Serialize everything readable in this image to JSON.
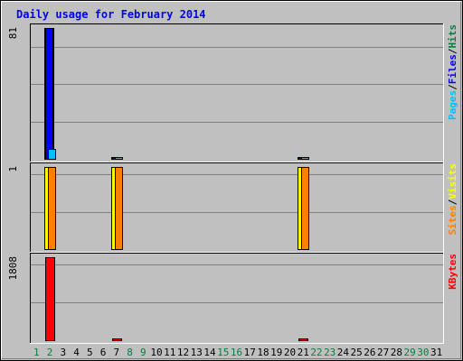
{
  "chart_data": {
    "type": "bar",
    "title": "Daily usage for February 2014",
    "days": [
      "1",
      "2",
      "3",
      "4",
      "5",
      "6",
      "7",
      "8",
      "9",
      "10",
      "11",
      "12",
      "13",
      "14",
      "15",
      "16",
      "17",
      "18",
      "19",
      "20",
      "21",
      "22",
      "23",
      "24",
      "25",
      "26",
      "27",
      "28",
      "29",
      "30",
      "31"
    ],
    "weekend_days": [
      "1",
      "2",
      "8",
      "9",
      "15",
      "16",
      "22",
      "23",
      "29",
      "30"
    ],
    "colors": {
      "hits": "#008040",
      "files": "#0000ff",
      "pages": "#00c0ff",
      "visits": "#ffff00",
      "sites": "#ff8000",
      "kbytes": "#ff0000",
      "title": "#0000ff",
      "weekend": "#008040",
      "weekday": "#000000",
      "background": "#c0c0c0"
    },
    "panels": [
      {
        "id": "hits-files-pages",
        "ymax_label": "81",
        "ylim": [
          0,
          81
        ],
        "legend": [
          {
            "label": "Pages",
            "color": "#00c0ff"
          },
          {
            "sep": "/"
          },
          {
            "label": "Files",
            "color": "#0000ff"
          },
          {
            "sep": "/"
          },
          {
            "label": "Hits",
            "color": "#008040"
          }
        ],
        "series": [
          {
            "name": "Hits",
            "color": "#008040",
            "values": {
              "2": 81,
              "7": 1,
              "21": 1
            }
          },
          {
            "name": "Files",
            "color": "#0000ff",
            "values": {
              "2": 81,
              "7": 1,
              "21": 1
            }
          },
          {
            "name": "Pages",
            "color": "#00c0ff",
            "values": {
              "2": 6,
              "7": 1,
              "21": 1
            }
          }
        ]
      },
      {
        "id": "visits-sites",
        "ymax_label": "1",
        "ylim": [
          0,
          1
        ],
        "legend": [
          {
            "label": "Sites",
            "color": "#ff8000"
          },
          {
            "sep": "/"
          },
          {
            "label": "Visits",
            "color": "#ffff00"
          }
        ],
        "series": [
          {
            "name": "Visits",
            "color": "#ffff00",
            "values": {
              "2": 1,
              "7": 1,
              "21": 1
            }
          },
          {
            "name": "Sites",
            "color": "#ff8000",
            "values": {
              "2": 1,
              "7": 1,
              "21": 1
            }
          }
        ]
      },
      {
        "id": "kbytes",
        "ymax_label": "1808",
        "ylim": [
          0,
          1808
        ],
        "legend": [
          {
            "label": "KBytes",
            "color": "#ff0000"
          }
        ],
        "series": [
          {
            "name": "KBytes",
            "color": "#ff0000",
            "values": {
              "2": 1808,
              "7": 4,
              "21": 4
            }
          }
        ]
      }
    ]
  }
}
